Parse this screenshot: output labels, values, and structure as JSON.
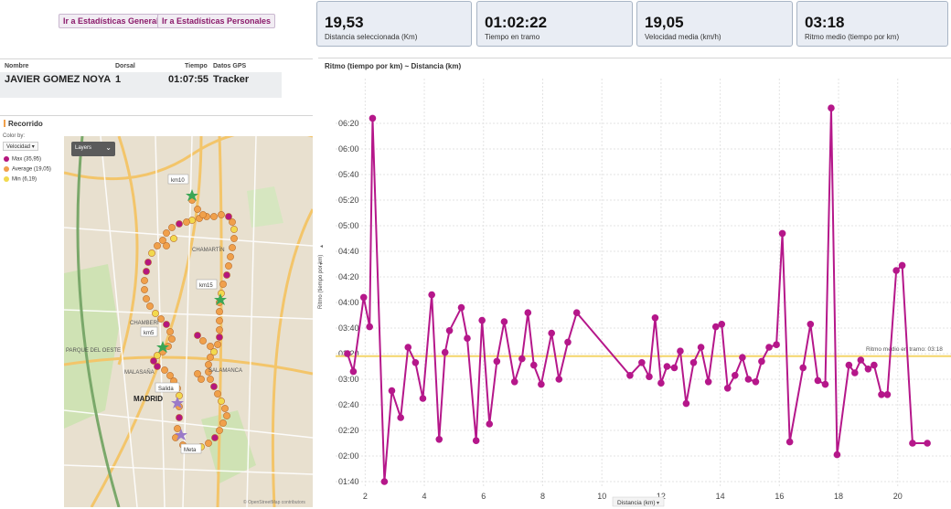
{
  "nav": {
    "general_label": "Ir a Estadísticas Generales",
    "personal_label": "Ir a Estadísticas Personales"
  },
  "stats": [
    {
      "value": "19,53",
      "label": "Distancia seleccionada (Km)"
    },
    {
      "value": "01:02:22",
      "label": "Tiempo en tramo"
    },
    {
      "value": "19,05",
      "label": "Velocidad media (km/h)"
    },
    {
      "value": "03:18",
      "label": "Ritmo medio (tiempo por km)"
    }
  ],
  "athlete": {
    "headers": {
      "name": "Nombre",
      "bib": "Dorsal",
      "time": "Tiempo",
      "gps": "Datos GPS"
    },
    "name": "JAVIER GOMEZ NOYA",
    "bib": "1",
    "time": "01:07:55",
    "gps": "Tracker"
  },
  "route": {
    "title": "Recorrido",
    "color_by_label": "Color by:",
    "color_by_value": "Velocidad",
    "legend": [
      {
        "label": "Max (35,95)",
        "color": "#b5177e"
      },
      {
        "label": "Average (19,05)",
        "color": "#f0a04b"
      },
      {
        "label": "Min (6,19)",
        "color": "#f2d94e"
      }
    ],
    "layers_label": "Layers",
    "map_labels": {
      "km10": "km10",
      "km15": "km15",
      "km5": "km5",
      "salida": "Salida",
      "meta": "Meta",
      "madrid": "MADRID",
      "chamberi": "CHAMBERÍ",
      "chamartin": "CHAMARTÍN",
      "malasana": "MALASAÑA",
      "parque": "PARQUE\nDEL OESTE",
      "salamanca": "SALAMANCA"
    },
    "attribution": "© OpenStreetMap contributors"
  },
  "chart_data": {
    "type": "line",
    "title": "Ritmo (tiempo por km) ~ Distancia (km)",
    "xlabel": "Distancia (km)",
    "ylabel": "Ritmo (tiempo por km)",
    "xlim": [
      1,
      21.8
    ],
    "ylim_seconds": [
      95,
      415
    ],
    "xticks": [
      2,
      4,
      6,
      8,
      10,
      12,
      14,
      16,
      18,
      20
    ],
    "yticks": [
      "01:40",
      "02:00",
      "02:20",
      "02:40",
      "03:00",
      "03:20",
      "03:40",
      "04:00",
      "04:20",
      "04:40",
      "05:00",
      "05:20",
      "05:40",
      "06:00",
      "06:20"
    ],
    "reference_line": {
      "label": "Ritmo medio en tramo: 03:18",
      "value": "03:18"
    },
    "color": "#b5178a",
    "series": [
      {
        "x": [
          1.4,
          1.6,
          1.95,
          2.15,
          2.25,
          2.65,
          2.9,
          3.2,
          3.45,
          3.7,
          3.95,
          4.25,
          4.5,
          4.7,
          4.85,
          5.25,
          5.45,
          5.75,
          5.95,
          6.2,
          6.45,
          6.7,
          7.05,
          7.3,
          7.5,
          7.7,
          7.95,
          8.3,
          8.55,
          8.85,
          9.15,
          10.95,
          11.35,
          11.6,
          11.8,
          12.0,
          12.2,
          12.45,
          12.65,
          12.85,
          13.1,
          13.35,
          13.6,
          13.85,
          14.05,
          14.25,
          14.5,
          14.75,
          14.95,
          15.2,
          15.4,
          15.65,
          15.9,
          16.1,
          16.35,
          16.8,
          17.05,
          17.3,
          17.55,
          17.75,
          17.95,
          18.35,
          18.55,
          18.75,
          19.0,
          19.2,
          19.45,
          19.65,
          19.95,
          20.15,
          20.5,
          21.0
        ],
        "y": [
          "03:20",
          "03:06",
          "04:04",
          "03:41",
          "06:24",
          "01:40",
          "02:51",
          "02:30",
          "03:25",
          "03:13",
          "02:45",
          "04:06",
          "02:13",
          "03:21",
          "03:38",
          "03:56",
          "03:32",
          "02:12",
          "03:46",
          "02:25",
          "03:14",
          "03:45",
          "02:58",
          "03:16",
          "03:52",
          "03:11",
          "02:56",
          "03:36",
          "03:00",
          "03:29",
          "03:52",
          "03:03",
          "03:13",
          "03:02",
          "03:48",
          "02:57",
          "03:10",
          "03:09",
          "03:22",
          "02:41",
          "03:13",
          "03:25",
          "02:58",
          "03:41",
          "03:43",
          "02:53",
          "03:03",
          "03:17",
          "03:00",
          "02:58",
          "03:14",
          "03:25",
          "03:27",
          "04:54",
          "02:11",
          "03:09",
          "03:43",
          "02:59",
          "02:56",
          "06:32",
          "02:01",
          "03:11",
          "03:05",
          "03:15",
          "03:08",
          "03:11",
          "02:48",
          "02:48",
          "04:25",
          "04:29",
          "02:10",
          "02:10"
        ]
      }
    ]
  }
}
